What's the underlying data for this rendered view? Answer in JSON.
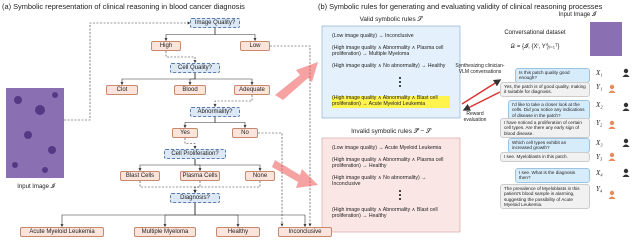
{
  "panel_a": {
    "title": "(a) Symbolic representation of clinical reasoning in blood cancer diagnosis",
    "input_image_label": "Input Image 𝓘",
    "nodes": [
      "Image Quality?",
      "High",
      "Low",
      "Cell Quality?",
      "Clot",
      "Blood",
      "Adequate",
      "Abnormality?",
      "Yes",
      "No",
      "Cell Proliferation?",
      "Blast Cells",
      "Plasma Cells",
      "None",
      "Diagnosis?",
      "Acute Myeloid Leukemia",
      "Multiple Myeloma",
      "Healthy",
      "Inconclusive"
    ]
  },
  "panel_b": {
    "title": "(b) Symbolic rules for generating and evaluating validity of clinical reasoning processes",
    "valid_title": "Valid symbolic rules 𝒮",
    "valid_rules": [
      "(Low image quality) → Inconclusive",
      "(High image quality ∧ Abnormality ∧ Plasma cell proliferation) → Multiple Myeloma",
      "(High image quality ∧ No abnormality) → Healthy",
      "(High image quality ∧ Abnormality ∧ Blast cell proliferation) → Acute Myeloid Leukemia"
    ],
    "invalid_title": "Invalid symbolic rules 𝒮̄ − 𝒮",
    "invalid_rules": [
      "(Low image quality) → Acute Myeloid Leukemia",
      "(High image quality ∧ Abnormality ∧ Plasma cell proliferation) → Healthy",
      "(High image quality ∧ No abnormality) → Inconclusive",
      "(High image quality ∧ Abnormality ∧ Blast cell proliferation) → Healthy"
    ],
    "dataset_label": "Conversational dataset",
    "dataset_formula": "𝒟 = {𝓘, {Xⁱ, Yⁱ}ᵢ₌₁ᵀ}",
    "input_image_label": "Input Image 𝓘",
    "synth_label": "Synthesizing clinician-VLM conversations",
    "reward_label": "Reward evaluation",
    "conversation": [
      {
        "speaker": "X₁",
        "text": "Is this patch quality good enough?"
      },
      {
        "speaker": "Y₁",
        "text": "Yes, the patch is of good quality, making it suitable for diagnosis."
      },
      {
        "speaker": "X₂",
        "text": "I'd like to take a closer look at the cells. Did you notice any indications of disease in the patch?"
      },
      {
        "speaker": "Y₂",
        "text": "I have noticed a proliferation of certain cell types. Are there any early sign of blood disease."
      },
      {
        "speaker": "X₃",
        "text": "Which cell types exhibit an increased growth?"
      },
      {
        "speaker": "Y₃",
        "text": "I see. Myeloblasts in this patch."
      },
      {
        "speaker": "X₄",
        "text": "I see. What is the diagnosis then?"
      },
      {
        "speaker": "Y₄",
        "text": "The prevalence of Myeloblasts in this patient's blood sample is alarming, suggesting the possibility of Acute Myeloid Leukemia."
      }
    ]
  }
}
